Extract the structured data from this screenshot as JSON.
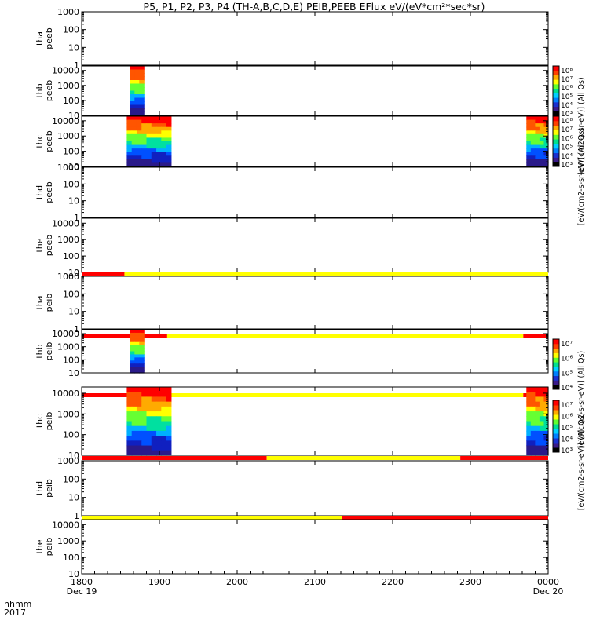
{
  "title": "P5, P1, P2, P3, P4 (TH-A,B,C,D,E) PEIB,PEEB EFlux eV/(eV*cm²*sec*sr)",
  "x_axis": {
    "label_line1": "hhmm",
    "label_line2": "2017",
    "ticks": [
      "1800",
      "1900",
      "2000",
      "2100",
      "2200",
      "2300",
      "0000"
    ],
    "date_labels": [
      {
        "tick": "1800",
        "text": "Dec 19"
      },
      {
        "tick": "0000",
        "text": "Dec 20"
      }
    ]
  },
  "colorbars": [
    {
      "label": "[eV/(cm2-s-sr-eV)] (All Qs)",
      "ticks": [
        "10⁸",
        "10⁷",
        "10⁶",
        "10⁵",
        "10⁴",
        "10³"
      ]
    },
    {
      "label": "[eV/(cm2-s-sr-eV)] (All Qs)",
      "ticks": [
        "10⁸",
        "10⁷",
        "10⁶",
        "10⁵",
        "10⁴",
        "10³"
      ]
    },
    {
      "label": "[eV/(cm2-s-sr-eV)] (All Qs)",
      "ticks": [
        "10⁷",
        "10⁶",
        "10⁵",
        "10⁴"
      ]
    },
    {
      "label": "[eV/(cm2-s-sr-eV)] (All Qs)",
      "ticks": [
        "10⁷",
        "10⁶",
        "10⁵",
        "10⁴",
        "10³"
      ]
    }
  ],
  "chart_data": {
    "type": "heatmap",
    "x_range_hours": [
      18,
      24
    ],
    "y_scale": "log",
    "panels": [
      {
        "probe": "tha",
        "product": "peeb",
        "yticks": [
          "1",
          "10",
          "100",
          "1000"
        ],
        "ylim": [
          1,
          1000
        ],
        "data_intervals": []
      },
      {
        "probe": "thb",
        "product": "peeb",
        "yticks": [
          "10",
          "100",
          "1000",
          "10000"
        ],
        "ylim": [
          10,
          20000
        ],
        "data_intervals": [
          [
            18.62,
            18.8
          ]
        ]
      },
      {
        "probe": "thc",
        "product": "peeb",
        "yticks": [
          "10",
          "100",
          "1000",
          "10000"
        ],
        "ylim": [
          10,
          20000
        ],
        "data_intervals": [
          [
            18.58,
            19.15
          ],
          [
            23.72,
            24.0
          ]
        ]
      },
      {
        "probe": "thd",
        "product": "peeb",
        "yticks": [
          "1",
          "10",
          "100",
          "1000"
        ],
        "ylim": [
          1,
          1000
        ],
        "data_intervals": []
      },
      {
        "probe": "the",
        "product": "peeb",
        "yticks": [
          "10",
          "100",
          "1000",
          "10000"
        ],
        "ylim": [
          10,
          20000
        ],
        "data_intervals": [],
        "mode_bar": [
          {
            "from": 18.0,
            "to": 18.55,
            "mode": "red"
          },
          {
            "from": 18.55,
            "to": 24.0,
            "mode": "yellow"
          }
        ]
      },
      {
        "probe": "tha",
        "product": "peib",
        "yticks": [
          "1",
          "10",
          "100",
          "1000"
        ],
        "ylim": [
          1,
          1000
        ],
        "data_intervals": [],
        "mode_bar": [
          {
            "from": 18.0,
            "to": 19.1,
            "mode": "red"
          },
          {
            "from": 19.1,
            "to": 23.68,
            "mode": "yellow"
          },
          {
            "from": 23.68,
            "to": 24.0,
            "mode": "red"
          }
        ]
      },
      {
        "probe": "thb",
        "product": "peib",
        "yticks": [
          "10",
          "100",
          "1000",
          "10000"
        ],
        "ylim": [
          10,
          20000
        ],
        "data_intervals": [
          [
            18.62,
            18.8
          ]
        ],
        "mode_bar": [
          {
            "from": 18.0,
            "to": 19.1,
            "mode": "red"
          },
          {
            "from": 19.1,
            "to": 23.68,
            "mode": "yellow"
          },
          {
            "from": 23.68,
            "to": 24.0,
            "mode": "red"
          }
        ]
      },
      {
        "probe": "thc",
        "product": "peib",
        "yticks": [
          "10",
          "100",
          "1000",
          "10000"
        ],
        "ylim": [
          10,
          20000
        ],
        "data_intervals": [
          [
            18.58,
            19.15
          ],
          [
            23.72,
            24.0
          ]
        ],
        "mode_bar": [
          {
            "from": 18.0,
            "to": 20.38,
            "mode": "red"
          },
          {
            "from": 20.38,
            "to": 22.87,
            "mode": "yellow"
          },
          {
            "from": 22.87,
            "to": 24.0,
            "mode": "red"
          }
        ]
      },
      {
        "probe": "thd",
        "product": "peib",
        "yticks": [
          "1",
          "10",
          "100",
          "1000"
        ],
        "ylim": [
          1,
          1000
        ],
        "data_intervals": [],
        "mode_bar": [
          {
            "from": 18.0,
            "to": 21.35,
            "mode": "yellow"
          },
          {
            "from": 21.35,
            "to": 24.0,
            "mode": "red"
          }
        ]
      },
      {
        "probe": "the",
        "product": "peib",
        "yticks": [
          "10",
          "100",
          "1000",
          "10000"
        ],
        "ylim": [
          10,
          20000
        ],
        "data_intervals": []
      }
    ]
  }
}
